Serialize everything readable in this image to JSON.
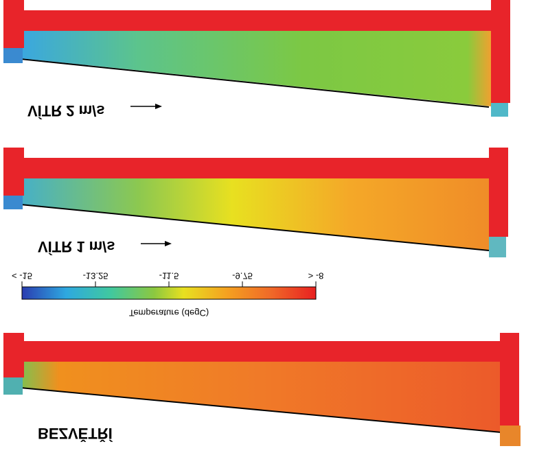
{
  "panels": [
    {
      "label": "VÍTR 2 m/s"
    },
    {
      "label": "VÍTR 1 m/s"
    },
    {
      "label": "BEZVĚTŘÍ"
    }
  ],
  "colorbar": {
    "title": "Temperature (degC)",
    "lim": [
      -15,
      -8
    ],
    "ticks": [
      {
        "value": -15,
        "label": "< -15"
      },
      -13.25,
      -11.5,
      -9.75,
      {
        "value": -8,
        "label": "> -8"
      }
    ]
  }
}
